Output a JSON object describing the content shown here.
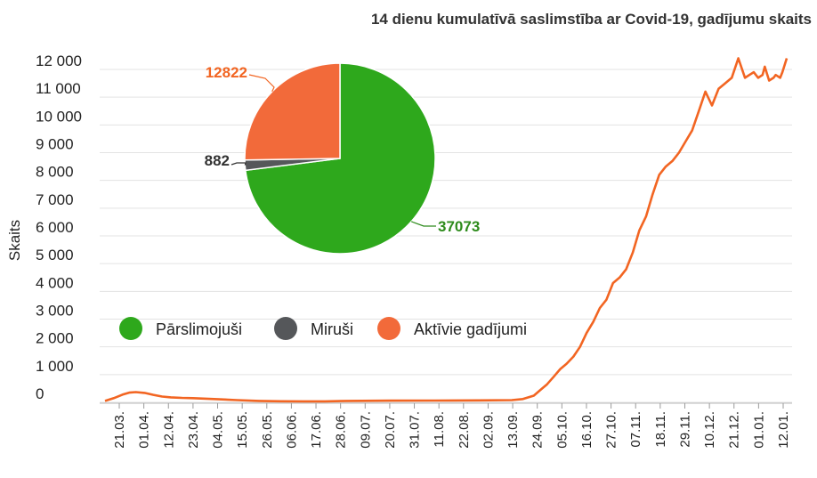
{
  "chart_data": [
    {
      "type": "line",
      "title": "14 dienu kumulatīvā saslimstība ar Covid-19, gadījumu skaits",
      "ylabel": "Skaits",
      "xlabel": "",
      "ylim": [
        0,
        12500
      ],
      "yticks": [
        0,
        1000,
        2000,
        3000,
        4000,
        5000,
        6000,
        7000,
        8000,
        9000,
        10000,
        11000,
        12000
      ],
      "ytick_labels": [
        "0",
        "1 000",
        "2 000",
        "3 000",
        "4 000",
        "5 000",
        "6 000",
        "7 000",
        "8 000",
        "9 000",
        "10 000",
        "11 000",
        "12 000"
      ],
      "xtick_labels": [
        "21.03.",
        "01.04.",
        "12.04.",
        "23.04.",
        "04.05.",
        "15.05.",
        "26.05.",
        "06.06.",
        "17.06.",
        "28.06.",
        "09.07.",
        "20.07.",
        "31.07.",
        "11.08.",
        "22.08.",
        "02.09.",
        "13.09.",
        "24.09.",
        "05.10.",
        "16.10.",
        "27.10.",
        "07.11.",
        "18.11.",
        "29.11.",
        "10.12.",
        "21.12.",
        "01.01.",
        "12.01."
      ],
      "grid": true,
      "series": [
        {
          "color": "#f26522",
          "x": [
            0,
            4,
            8,
            11,
            14,
            18,
            22,
            26,
            30,
            35,
            40,
            46,
            52,
            60,
            70,
            80,
            90,
            100,
            110,
            130,
            150,
            170,
            185,
            190,
            195,
            198,
            201,
            204,
            207,
            210,
            213,
            216,
            219,
            222,
            225,
            228,
            231,
            234,
            237,
            240,
            243,
            246,
            249,
            252,
            255,
            258,
            261,
            264,
            267,
            270,
            273,
            276,
            279,
            282,
            285,
            288,
            291,
            293,
            295,
            297,
            299,
            300,
            302,
            304,
            305,
            307,
            308,
            310
          ],
          "values": [
            50,
            150,
            280,
            350,
            370,
            340,
            270,
            210,
            180,
            160,
            150,
            130,
            110,
            80,
            50,
            40,
            35,
            35,
            50,
            60,
            65,
            70,
            80,
            120,
            240,
            450,
            650,
            920,
            1200,
            1400,
            1650,
            2000,
            2500,
            2900,
            3400,
            3700,
            4300,
            4500,
            4800,
            5400,
            6200,
            6700,
            7500,
            8200,
            8500,
            8700,
            9000,
            9400,
            9800,
            10500,
            11200,
            10700,
            11300,
            11500,
            11700,
            12400,
            11700,
            11800,
            11900,
            11700,
            11800,
            12100,
            11600,
            11700,
            11800,
            11700,
            11900,
            12400
          ]
        }
      ]
    },
    {
      "type": "pie",
      "slices": [
        {
          "label": "Pārslimojuši",
          "value": 37073,
          "color": "#2ea81c",
          "label_color": "#2e8b1c"
        },
        {
          "label": "Miruši",
          "value": 882,
          "color": "#55575a",
          "label_color": "#333333"
        },
        {
          "label": "Aktīvie gadījumi",
          "value": 12822,
          "color": "#f26a3a",
          "label_color": "#f26522"
        }
      ],
      "legend": "bottom-left"
    }
  ]
}
